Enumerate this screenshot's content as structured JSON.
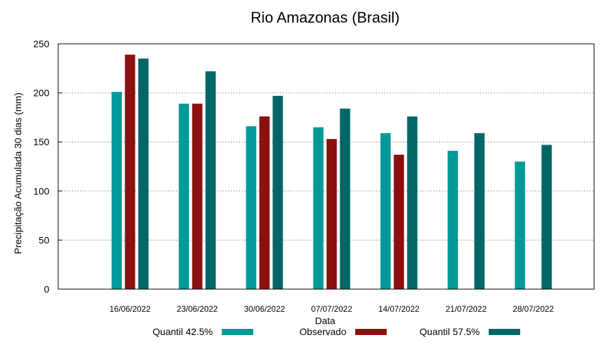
{
  "chart_data": {
    "type": "bar",
    "title": "Rio Amazonas (Brasil)",
    "xlabel": "Data",
    "ylabel": "Precipitação Acumulada 30 dias (mm)",
    "ylim": [
      0,
      250
    ],
    "yticks": [
      0,
      50,
      100,
      150,
      200,
      250
    ],
    "grid": true,
    "legend_position": "bottom",
    "categories": [
      "16/06/2022",
      "23/06/2022",
      "30/06/2022",
      "07/07/2022",
      "14/07/2022",
      "21/07/2022",
      "28/07/2022"
    ],
    "series": [
      {
        "name": "Quantil 42.5%",
        "color": "#009999",
        "values": [
          201,
          189,
          166,
          165,
          159,
          141,
          130
        ]
      },
      {
        "name": "Observado",
        "color": "#8b1010",
        "values": [
          239,
          189,
          176,
          153,
          137,
          null,
          null
        ]
      },
      {
        "name": "Quantil 57.5%",
        "color": "#006666",
        "values": [
          235,
          222,
          197,
          184,
          176,
          159,
          147
        ]
      }
    ]
  }
}
